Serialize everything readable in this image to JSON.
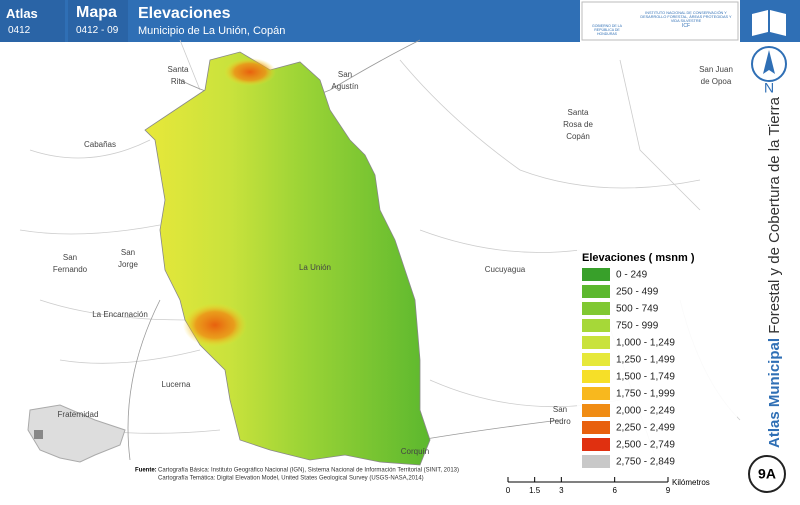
{
  "header": {
    "atlas_label": "Atlas",
    "atlas_code": "0412",
    "map_label": "Mapa",
    "map_code": "0412 - 09",
    "title": "Elevaciones",
    "subtitle": "Municipio de La Unión, Copán",
    "logo_left": "GOBIERNO DE LA REPÚBLICA DE HONDURAS",
    "logo_right": "INSTITUTO NACIONAL DE CONSERVACIÓN Y DESARROLLO FORESTAL, ÁREAS PROTEGIDAS Y VIDA SILVESTRE",
    "logo_right_short": "ICF"
  },
  "side": {
    "north": "N",
    "series_bold": "Atlas Municipal",
    "series_rest": "Forestal y de Cobertura de la Tierra",
    "badge": "9A"
  },
  "places": [
    [
      "Santa",
      "Rita"
    ],
    [
      "San",
      "Agustín"
    ],
    [
      "San Juan",
      "de Opoa"
    ],
    [
      "Cabañas"
    ],
    [
      "Santa",
      "Rosa de",
      "Copán"
    ],
    [
      "San",
      "Fernando"
    ],
    [
      "San",
      "Jorge"
    ],
    [
      "La Unión"
    ],
    [
      "Cucuyagua"
    ],
    [
      "La Encarnación"
    ],
    [
      "Lucerna"
    ],
    [
      "Fraternidad"
    ],
    [
      "San",
      "Pedro"
    ],
    [
      "Corquín"
    ]
  ],
  "legend": {
    "title": "Elevaciones ( msnm )",
    "items": [
      {
        "label": "0 - 249",
        "color": "#38a02a"
      },
      {
        "label": "250 - 499",
        "color": "#5cb82e"
      },
      {
        "label": "500 - 749",
        "color": "#80c832"
      },
      {
        "label": "750 - 999",
        "color": "#a6d838"
      },
      {
        "label": "1,000 - 1,249",
        "color": "#c9e23c"
      },
      {
        "label": "1,250 - 1,499",
        "color": "#e6e83a"
      },
      {
        "label": "1,500 - 1,749",
        "color": "#f6df28"
      },
      {
        "label": "1,750 - 1,999",
        "color": "#f8b81e"
      },
      {
        "label": "2,000 - 2,249",
        "color": "#f08c14"
      },
      {
        "label": "2,250 - 2,499",
        "color": "#e8600e"
      },
      {
        "label": "2,500 - 2,749",
        "color": "#e03010"
      },
      {
        "label": "2,750 - 2,849",
        "color": "#c8c8c8"
      }
    ]
  },
  "scale_bar": {
    "ticks": [
      0,
      1.5,
      3,
      6,
      9
    ],
    "unit": "Kilómetros"
  },
  "footer": {
    "source_label": "Fuente:",
    "source_1": "Cartografía Básica: Instituto Geográfico Nacional (IGN), Sistema Nacional de Información Territorial (SINIT, 2013)",
    "source_2": "Cartografía Temática: Digital Elevation Model, United States Geological Survey (USGS-NASA,2014)"
  }
}
